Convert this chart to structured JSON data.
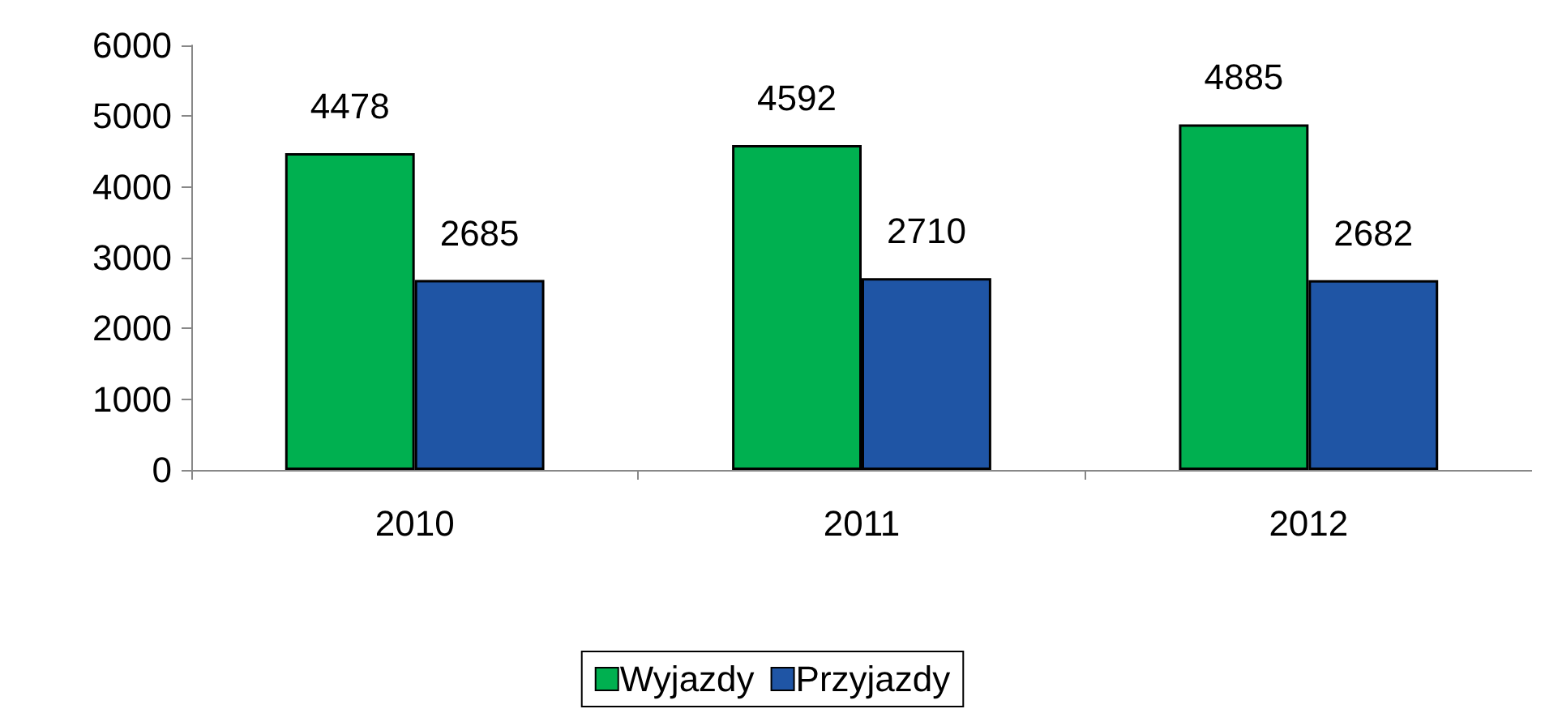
{
  "chart_data": {
    "type": "bar",
    "categories": [
      "2010",
      "2011",
      "2012"
    ],
    "series": [
      {
        "name": "Wyjazdy",
        "color": "#00b050",
        "values": [
          4478,
          4592,
          4885
        ]
      },
      {
        "name": "Przyjazdy",
        "color": "#1f55a5",
        "values": [
          2685,
          2710,
          2682
        ]
      }
    ],
    "ylim": [
      0,
      6000
    ],
    "yticks": [
      0,
      1000,
      2000,
      3000,
      4000,
      5000,
      6000
    ],
    "grid": false,
    "legend": "bottom",
    "data_labels": true
  }
}
